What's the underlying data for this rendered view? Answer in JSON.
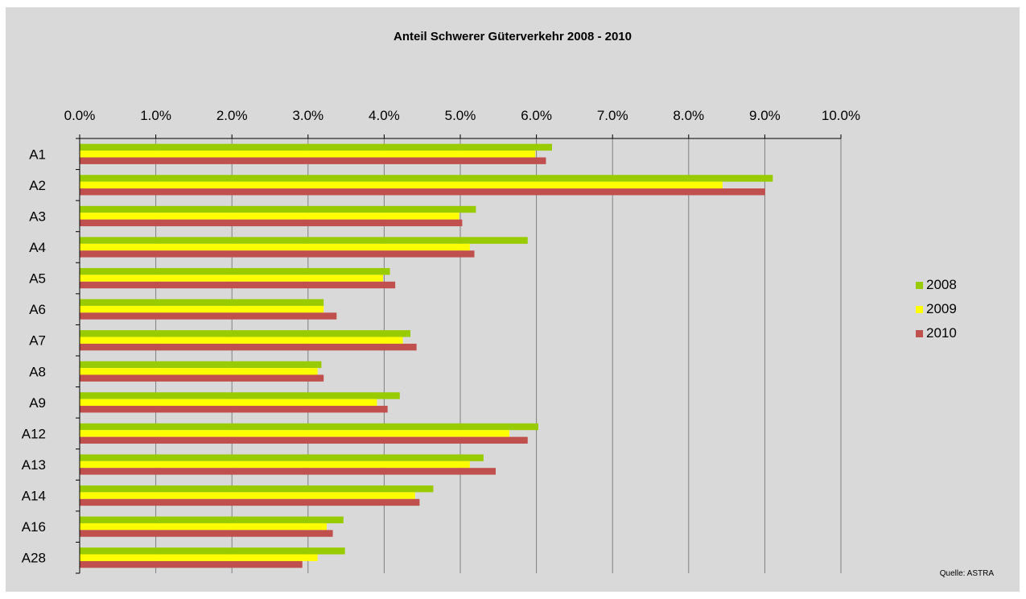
{
  "chart_data": {
    "type": "bar",
    "orientation": "horizontal",
    "title": "Anteil Schwerer Güterverkehr  2008 - 2010",
    "categories": [
      "A1",
      "A2",
      "A3",
      "A4",
      "A5",
      "A6",
      "A7",
      "A8",
      "A9",
      "A12",
      "A13",
      "A14",
      "A16",
      "A28"
    ],
    "series": [
      {
        "name": "2008",
        "color": "#99cc00",
        "values": [
          6.2,
          9.1,
          5.2,
          5.88,
          4.07,
          3.2,
          4.34,
          3.17,
          4.2,
          6.02,
          5.3,
          4.64,
          3.46,
          3.48
        ]
      },
      {
        "name": "2009",
        "color": "#ffff00",
        "values": [
          5.98,
          8.44,
          4.98,
          5.12,
          3.98,
          3.2,
          4.24,
          3.12,
          3.9,
          5.64,
          5.12,
          4.4,
          3.24,
          3.12
        ]
      },
      {
        "name": "2010",
        "color": "#c0504d",
        "values": [
          6.12,
          9.0,
          5.02,
          5.18,
          4.14,
          3.37,
          4.42,
          3.2,
          4.04,
          5.88,
          5.46,
          4.46,
          3.32,
          2.92
        ]
      }
    ],
    "xlim": [
      0,
      10
    ],
    "xticks": [
      "0.0%",
      "1.0%",
      "2.0%",
      "3.0%",
      "4.0%",
      "5.0%",
      "6.0%",
      "7.0%",
      "8.0%",
      "9.0%",
      "10.0%"
    ],
    "grid": true,
    "legend_position": "right",
    "source": "Quelle: ASTRA"
  }
}
